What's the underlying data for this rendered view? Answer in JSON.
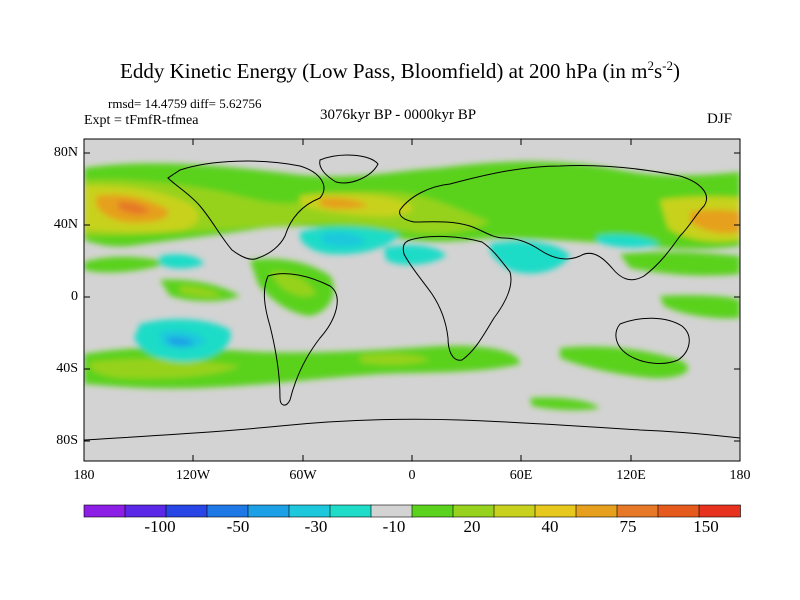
{
  "title": {
    "main": "Eddy Kinetic Energy (Low Pass, Bloomfield) at 200 hPa (in m",
    "sup1": "2",
    "mid": "s",
    "sup2": "-2",
    "end": ")"
  },
  "stats": "rmsd= 14.4759 diff= 5.62756",
  "experiment": "Expt = tFmfR-tfmea",
  "period": "3076kyr BP - 0000kyr BP",
  "season": "DJF",
  "map_data": {
    "type": "filled-contour",
    "projection": "cylindrical-equidistant",
    "lon_range": [
      -180,
      180
    ],
    "lat_range": [
      -90,
      90
    ],
    "lat_ticks": [
      "80N",
      "40N",
      "0",
      "40S",
      "80S"
    ],
    "lon_ticks": [
      "180",
      "120W",
      "60W",
      "0",
      "60E",
      "120E",
      "180"
    ],
    "land_color": "#d3d3d3",
    "coastline_color": "#000000"
  },
  "colorbar": {
    "colors": [
      "#8c1ee6",
      "#5a28e6",
      "#2846e6",
      "#1e78e6",
      "#1ea0e6",
      "#1ec8dc",
      "#1edcc8",
      "#d3d3d3",
      "#5ad21e",
      "#96d21e",
      "#c8d21e",
      "#e6c81e",
      "#e6a01e",
      "#e67828",
      "#e65a1e",
      "#e6321e"
    ],
    "labels": [
      "-100",
      "-50",
      "-30",
      "-10",
      "20",
      "40",
      "75",
      "150"
    ]
  }
}
